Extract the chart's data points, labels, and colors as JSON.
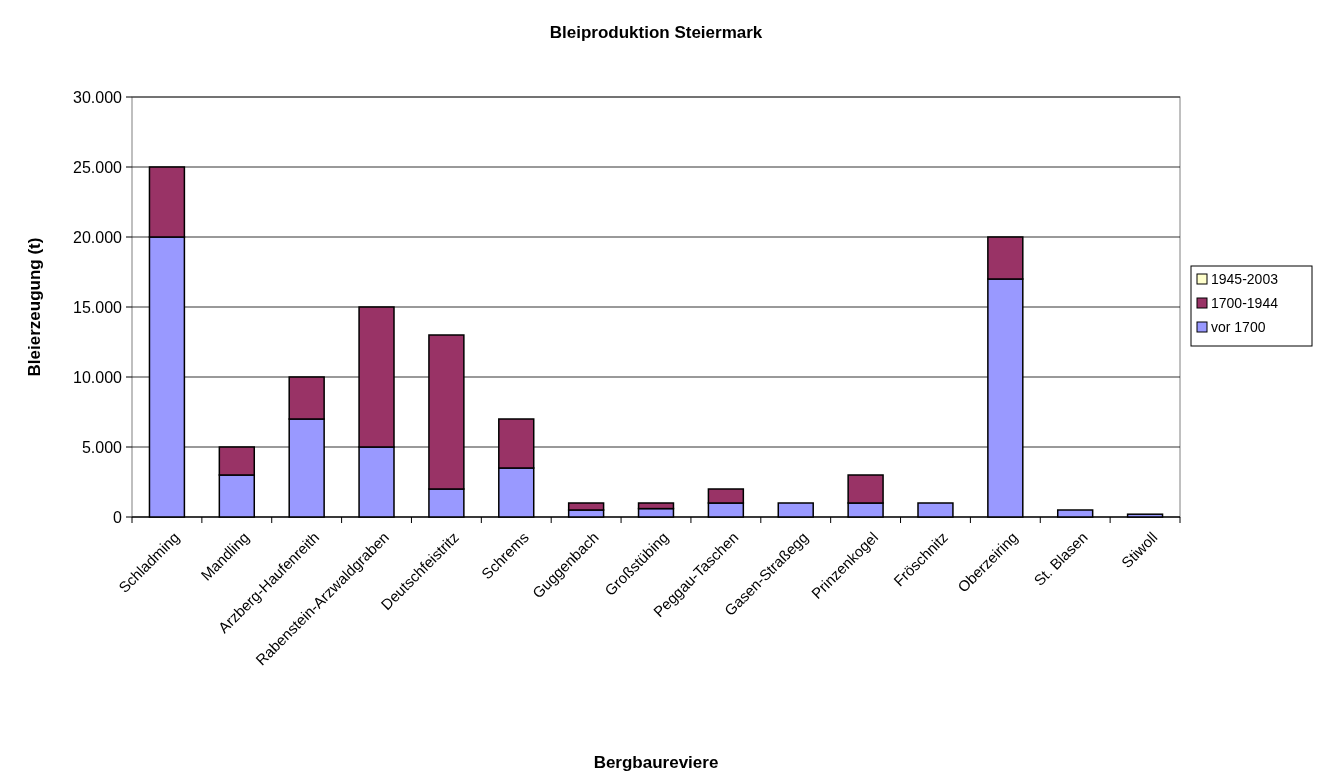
{
  "chart_data": {
    "type": "bar",
    "title": "Bleiproduktion Steiermark",
    "xlabel": "Bergbaureviere",
    "ylabel": "Bleierzeugung (t)",
    "categories": [
      "Schladming",
      "Mandling",
      "Arzberg-Haufenreith",
      "Rabenstein-Arzwaldgraben",
      "Deutschfeistritz",
      "Schrems",
      "Guggenbach",
      "Großstübing",
      "Peggau-Taschen",
      "Gasen-Straßegg",
      "Prinzenkogel",
      "Fröschnitz",
      "Oberzeiring",
      "St. Blasen",
      "Stiwoll"
    ],
    "stacked": true,
    "series": [
      {
        "name": "vor 1700",
        "color": "#9999ff",
        "values": [
          20000,
          3000,
          7000,
          5000,
          2000,
          3500,
          500,
          600,
          1000,
          1000,
          1000,
          1000,
          17000,
          500,
          200
        ]
      },
      {
        "name": "1700-1944",
        "color": "#993366",
        "values": [
          5000,
          2000,
          3000,
          10000,
          11000,
          3500,
          500,
          400,
          1000,
          0,
          2000,
          0,
          3000,
          0,
          0
        ]
      },
      {
        "name": "1945-2003",
        "color": "#ffffcc",
        "values": [
          0,
          0,
          0,
          0,
          0,
          0,
          0,
          0,
          0,
          0,
          0,
          0,
          0,
          0,
          0
        ]
      }
    ],
    "ylim": [
      0,
      30000
    ],
    "yticks": [
      {
        "value": 0,
        "label": "0"
      },
      {
        "value": 5000,
        "label": "5.000"
      },
      {
        "value": 10000,
        "label": "10.000"
      },
      {
        "value": 15000,
        "label": "15.000"
      },
      {
        "value": 20000,
        "label": "20.000"
      },
      {
        "value": 25000,
        "label": "25.000"
      },
      {
        "value": 30000,
        "label": "30.000"
      }
    ],
    "grid": "y",
    "legend": "right"
  }
}
